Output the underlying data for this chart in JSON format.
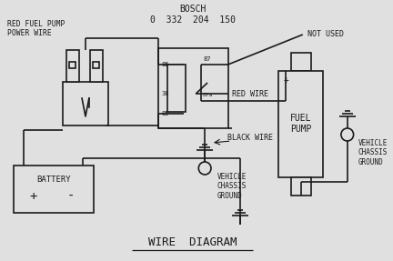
{
  "bg_color": "#e0e0e0",
  "line_color": "#1a1a1a",
  "title": "WIRE  DIAGRAM",
  "bosch1": "BOSCH",
  "bosch2": "0  332  204  150",
  "label_red_fuel": "RED FUEL PUMP\nPOWER WIRE",
  "label_not_used": "NOT USED",
  "label_red_wire": "RED WIRE",
  "label_black_wire": "BLACK WIRE",
  "label_vcg1": "VEHICLE\nCHASSIS\nGROUND",
  "label_battery": "BATTERY",
  "label_fuel_pump": "FUEL\nPUMP",
  "label_vcg2": "VEHICLE\nCHASSIS\nGROUND",
  "label_batt_plus": "+",
  "label_batt_minus": "-",
  "label_fp_plus": "+"
}
